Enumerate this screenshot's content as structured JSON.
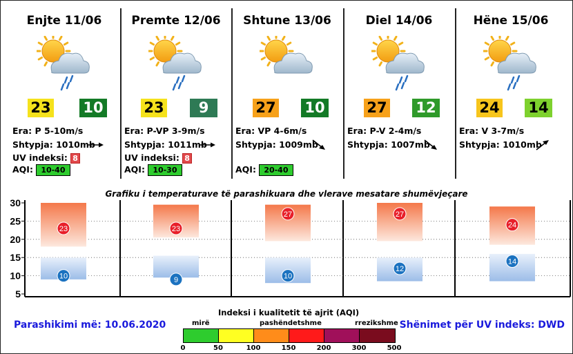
{
  "days": [
    {
      "title": "Enjte 11/06",
      "icon": "sun-cloud-rain-icon",
      "tmax": "23",
      "tmin": "10",
      "max_color": "#f5e21c",
      "min_color": "#137a26",
      "wind_label": "Era:",
      "wind": "P 5-10m/s",
      "pressure_label": "Shtypja:",
      "pressure": "1010mb",
      "pressure_trend": "flat",
      "uv_label": "UV indeksi:",
      "uv": "8",
      "aqi_label": "AQI:",
      "aqi": "10-40"
    },
    {
      "title": "Premte 12/06",
      "icon": "sun-cloud-rain-icon",
      "tmax": "23",
      "tmin": "9",
      "max_color": "#f5e21c",
      "min_color": "#2e7a55",
      "wind_label": "Era:",
      "wind": "P-VP 3-9m/s",
      "pressure_label": "Shtypja:",
      "pressure": "1011mb",
      "pressure_trend": "flat",
      "uv_label": "UV indeksi:",
      "uv": "8",
      "aqi_label": "AQI:",
      "aqi": "10-30"
    },
    {
      "title": "Shtune 13/06",
      "icon": "sun-cloud-icon",
      "tmax": "27",
      "tmin": "10",
      "max_color": "#f7a11a",
      "min_color": "#137a26",
      "wind_label": "Era:",
      "wind": "VP 4-6m/s",
      "pressure_label": "Shtypja:",
      "pressure": "1009mb",
      "pressure_trend": "down",
      "uv_label": "",
      "uv": "",
      "aqi_label": "AQI:",
      "aqi": "20-40"
    },
    {
      "title": "Diel 14/06",
      "icon": "sun-cloud-rain-icon",
      "tmax": "27",
      "tmin": "12",
      "max_color": "#f7a11a",
      "min_color": "#2f9a2a",
      "wind_label": "Era:",
      "wind": "P-V 2-4m/s",
      "pressure_label": "Shtypja:",
      "pressure": "1007mb",
      "pressure_trend": "down",
      "uv_label": "",
      "uv": "",
      "aqi_label": "",
      "aqi": ""
    },
    {
      "title": "Hëne 15/06",
      "icon": "sun-cloud-rain-icon",
      "tmax": "24",
      "tmin": "14",
      "max_color": "#f7c51c",
      "min_color": "#7ed12e",
      "wind_label": "Era:",
      "wind": "V 3-7m/s",
      "pressure_label": "Shtypja:",
      "pressure": "1010mb",
      "pressure_trend": "up",
      "uv_label": "",
      "uv": "",
      "aqi_label": "",
      "aqi": ""
    }
  ],
  "chart_title": "Grafiku i temperaturave të parashikuara dhe vlerave mesatare shumëvjeçare",
  "chart_data": {
    "type": "bar",
    "title": "Grafiku i temperaturave të parashikuara dhe vlerave mesatare shumëvjeçare",
    "categories": [
      "Enjte 11/06",
      "Premte 12/06",
      "Shtune 13/06",
      "Diel 14/06",
      "Hëne 15/06"
    ],
    "ylim": [
      5,
      30
    ],
    "yticks": [
      5,
      10,
      15,
      20,
      25,
      30
    ],
    "series": [
      {
        "name": "max",
        "values": [
          23,
          23,
          27,
          27,
          24
        ],
        "color": "#e8202a"
      },
      {
        "name": "min",
        "values": [
          10,
          9,
          10,
          12,
          14
        ],
        "color": "#1b72c0"
      }
    ],
    "max_ranges": [
      [
        18,
        30
      ],
      [
        20.5,
        29.5
      ],
      [
        19.5,
        29.5
      ],
      [
        19.5,
        30
      ],
      [
        18.5,
        29
      ]
    ],
    "min_ranges": [
      [
        9,
        15
      ],
      [
        9.5,
        15.5
      ],
      [
        8,
        15
      ],
      [
        8.5,
        15
      ],
      [
        8.5,
        16
      ]
    ]
  },
  "footer": {
    "forecast_date": "Parashikimi më: 10.06.2020",
    "uv_source": "Shënimet për UV indeks: DWD",
    "aqi_title": "Indeksi i kualitetit të ajrit (AQI)",
    "aqi_words": [
      "mirë",
      "pashëndetshme",
      "rrezikshme"
    ],
    "aqi_colors": [
      "#2ecc2e",
      "#ffff22",
      "#ff8c1a",
      "#ff1a1a",
      "#a0105a",
      "#7a0c1e"
    ],
    "aqi_ticks": [
      "0",
      "50",
      "100",
      "150",
      "200",
      "300",
      "500"
    ]
  }
}
